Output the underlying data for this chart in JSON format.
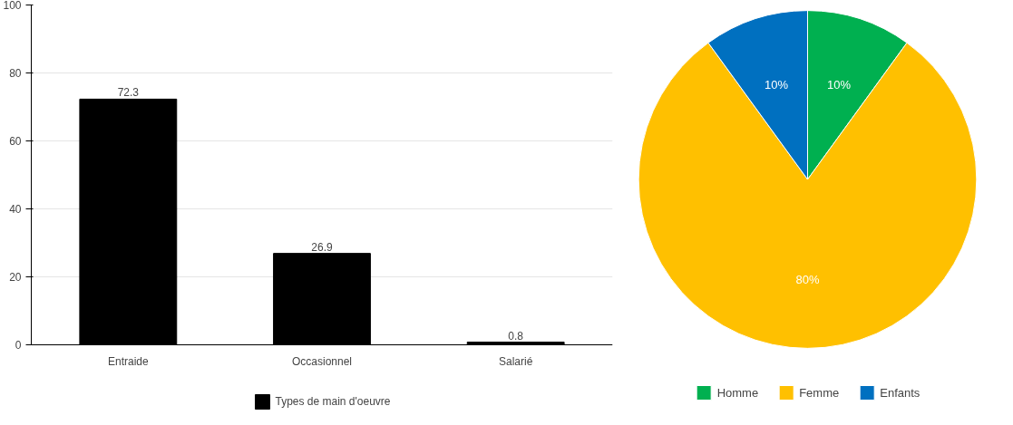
{
  "chart_data": [
    {
      "type": "bar",
      "categories": [
        "Entraide",
        "Occasionnel",
        "Salarié"
      ],
      "series": [
        {
          "name": "Types de main d'oeuvre",
          "color": "#000000",
          "values": [
            72.3,
            26.9,
            0.8
          ]
        }
      ],
      "ylim": [
        0,
        100
      ],
      "yticks": [
        0,
        20,
        40,
        60,
        80,
        100
      ],
      "grid": "y",
      "legend": "bottom",
      "data_labels": true
    },
    {
      "type": "pie",
      "categories": [
        "Homme",
        "Femme",
        "Enfants"
      ],
      "values": [
        10,
        80,
        10
      ],
      "colors": [
        "#00b050",
        "#ffc000",
        "#0070c0"
      ],
      "value_labels": [
        "10%",
        "80%",
        "10%"
      ],
      "legend": "bottom"
    }
  ]
}
